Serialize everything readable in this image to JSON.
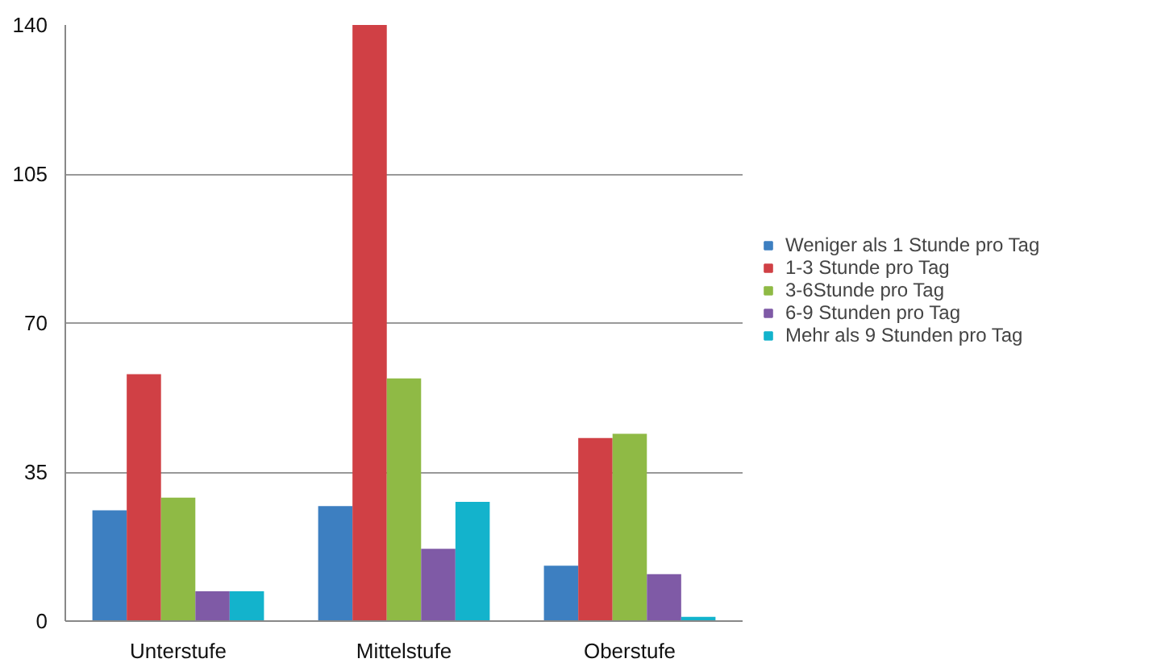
{
  "chart_data": {
    "type": "bar",
    "categories": [
      "Unterstufe",
      "Mittelstufe",
      "Oberstufe"
    ],
    "series": [
      {
        "name": "Weniger als 1 Stunde pro Tag",
        "color": "#3d7fc1",
        "values": [
          26,
          27,
          13
        ]
      },
      {
        "name": "1-3 Stunde pro Tag",
        "color": "#d04045",
        "values": [
          58,
          140,
          43
        ]
      },
      {
        "name": "3-6Stunde pro Tag",
        "color": "#8fba45",
        "values": [
          29,
          57,
          44
        ]
      },
      {
        "name": "6-9 Stunden pro Tag",
        "color": "#7f5aa6",
        "values": [
          7,
          17,
          11
        ]
      },
      {
        "name": "Mehr als 9 Stunden pro Tag",
        "color": "#13b3cc",
        "values": [
          7,
          28,
          1
        ]
      }
    ],
    "ylim": [
      0,
      140
    ],
    "yticks": [
      0,
      35,
      70,
      105,
      140
    ],
    "grid": "y",
    "legend": "right"
  }
}
